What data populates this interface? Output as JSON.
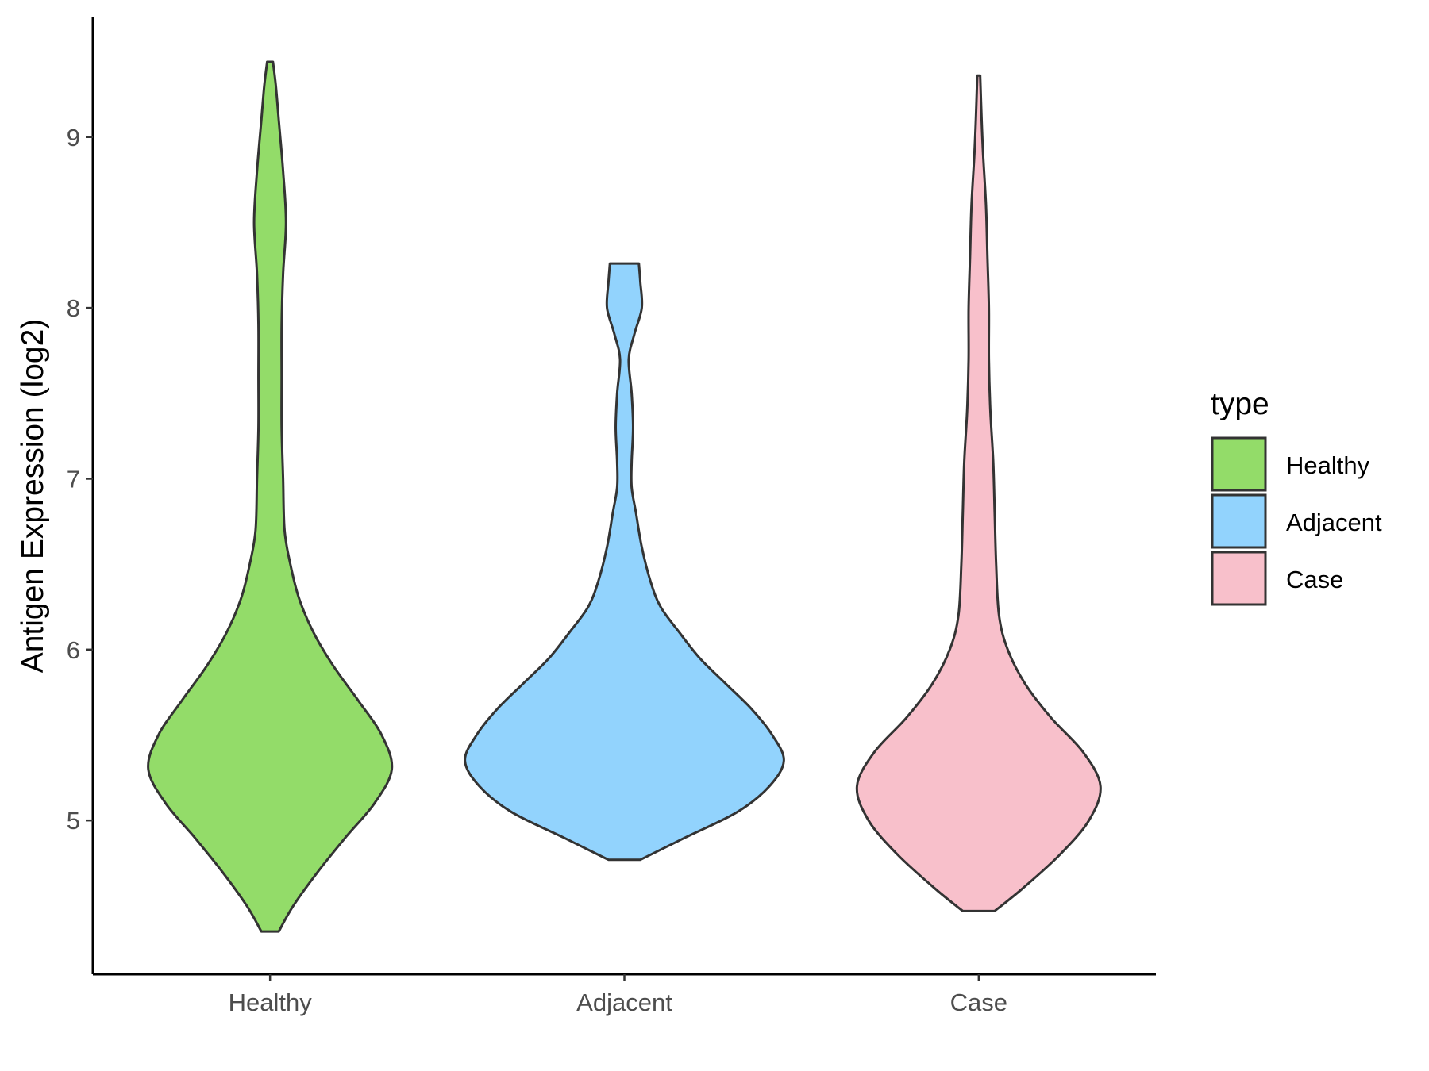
{
  "chart_data": {
    "type": "violin",
    "xlabel": "",
    "ylabel": "Antigen Expression (log2)",
    "ylim": [
      4.1,
      9.7
    ],
    "yticks": [
      5,
      6,
      7,
      8,
      9
    ],
    "categories": [
      "Healthy",
      "Adjacent",
      "Case"
    ],
    "grid": false,
    "legend": {
      "title": "type",
      "position": "right",
      "entries": [
        "Healthy",
        "Adjacent",
        "Case"
      ]
    },
    "series": [
      {
        "label": "Healthy",
        "color": "#93dc69",
        "min": 4.35,
        "max": 9.44,
        "density": [
          [
            4.35,
            0.06
          ],
          [
            4.5,
            0.16
          ],
          [
            4.7,
            0.33
          ],
          [
            4.9,
            0.52
          ],
          [
            5.1,
            0.72
          ],
          [
            5.3,
            0.84
          ],
          [
            5.5,
            0.77
          ],
          [
            5.7,
            0.61
          ],
          [
            5.9,
            0.44
          ],
          [
            6.1,
            0.3
          ],
          [
            6.3,
            0.2
          ],
          [
            6.5,
            0.14
          ],
          [
            6.7,
            0.1
          ],
          [
            7.0,
            0.09
          ],
          [
            7.3,
            0.08
          ],
          [
            7.6,
            0.08
          ],
          [
            7.9,
            0.08
          ],
          [
            8.2,
            0.09
          ],
          [
            8.5,
            0.11
          ],
          [
            8.8,
            0.09
          ],
          [
            9.1,
            0.06
          ],
          [
            9.3,
            0.04
          ],
          [
            9.44,
            0.02
          ]
        ]
      },
      {
        "label": "Adjacent",
        "color": "#92d3fd",
        "min": 4.77,
        "max": 8.26,
        "density": [
          [
            4.77,
            0.11
          ],
          [
            4.9,
            0.42
          ],
          [
            5.05,
            0.78
          ],
          [
            5.2,
            1.0
          ],
          [
            5.35,
            1.1
          ],
          [
            5.5,
            1.02
          ],
          [
            5.65,
            0.88
          ],
          [
            5.8,
            0.7
          ],
          [
            5.95,
            0.52
          ],
          [
            6.1,
            0.38
          ],
          [
            6.25,
            0.25
          ],
          [
            6.4,
            0.18
          ],
          [
            6.6,
            0.12
          ],
          [
            6.8,
            0.08
          ],
          [
            6.95,
            0.05
          ],
          [
            7.1,
            0.05
          ],
          [
            7.3,
            0.06
          ],
          [
            7.5,
            0.05
          ],
          [
            7.7,
            0.03
          ],
          [
            7.85,
            0.07
          ],
          [
            8.0,
            0.12
          ],
          [
            8.15,
            0.11
          ],
          [
            8.26,
            0.1
          ]
        ]
      },
      {
        "label": "Case",
        "color": "#f8c0cb",
        "min": 4.47,
        "max": 9.36,
        "density": [
          [
            4.47,
            0.11
          ],
          [
            4.6,
            0.3
          ],
          [
            4.8,
            0.56
          ],
          [
            5.0,
            0.76
          ],
          [
            5.2,
            0.84
          ],
          [
            5.4,
            0.72
          ],
          [
            5.6,
            0.5
          ],
          [
            5.8,
            0.32
          ],
          [
            6.0,
            0.2
          ],
          [
            6.2,
            0.14
          ],
          [
            6.5,
            0.12
          ],
          [
            6.8,
            0.11
          ],
          [
            7.1,
            0.1
          ],
          [
            7.4,
            0.08
          ],
          [
            7.7,
            0.07
          ],
          [
            8.0,
            0.07
          ],
          [
            8.3,
            0.06
          ],
          [
            8.6,
            0.05
          ],
          [
            8.9,
            0.03
          ],
          [
            9.1,
            0.02
          ],
          [
            9.36,
            0.01
          ]
        ]
      }
    ]
  }
}
